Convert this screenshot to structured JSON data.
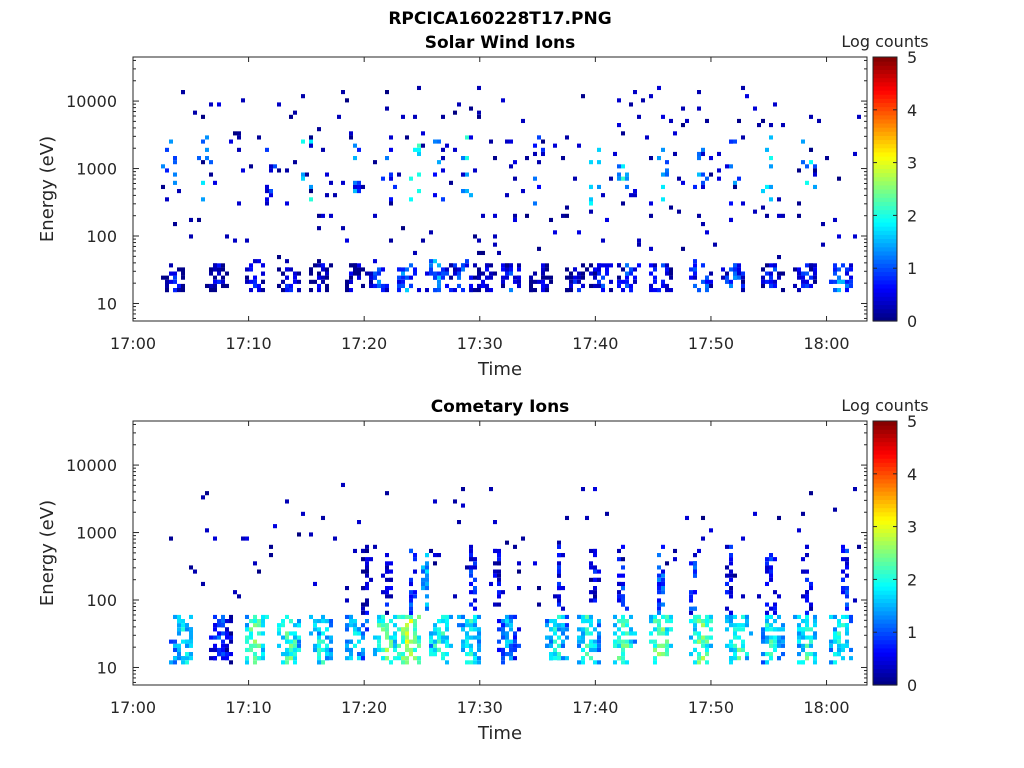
{
  "figure": {
    "title": "RPCICA160228T17.PNG"
  },
  "colormap": [
    "#00007f",
    "#0000ff",
    "#007fff",
    "#00ffff",
    "#7fff7f",
    "#ffff00",
    "#ff7f00",
    "#ff0000",
    "#7f0000"
  ],
  "chart_data": [
    {
      "type": "heatmap",
      "title": "Solar Wind Ions",
      "xlabel": "Time",
      "ylabel": "Energy (eV)",
      "x_tick_labels": [
        "17:00",
        "17:10",
        "17:20",
        "17:30",
        "17:40",
        "17:50",
        "18:00"
      ],
      "x_ticks_min": [
        0,
        10,
        20,
        30,
        40,
        50,
        60
      ],
      "xlim_min": [
        0,
        63.5
      ],
      "y_scale": "log",
      "y_tick_labels": [
        "10",
        "100",
        "1000",
        "10000"
      ],
      "y_ticks": [
        10,
        100,
        1000,
        10000
      ],
      "ylim": [
        5.5,
        45000
      ],
      "colorbar": {
        "label": "Log counts",
        "ticks": [
          "0",
          "1",
          "2",
          "3",
          "4",
          "5"
        ],
        "range": [
          0,
          5
        ]
      },
      "low_band": {
        "cluster_centers_min": [
          3.6,
          7.3,
          10.6,
          13.6,
          16.3,
          19.1,
          21.3,
          23.7,
          26.3,
          28.5,
          30.5,
          32.8,
          35.2,
          38.4,
          40.6,
          42.8,
          45.6,
          49.2,
          52.0,
          55.3,
          58.2,
          61.3
        ],
        "cluster_peaks_log": [
          1.0,
          0.9,
          1.3,
          1.1,
          0.8,
          0.9,
          1.5,
          1.7,
          1.8,
          1.6,
          1.0,
          1.3,
          1.0,
          1.1,
          1.2,
          1.4,
          1.5,
          1.7,
          1.5,
          1.2,
          1.3,
          1.8
        ],
        "energy_range_ev": [
          15,
          40
        ]
      },
      "mid_band": {
        "cluster_centers_min": [
          3.2,
          6.2,
          12.0,
          15.1,
          19.1,
          22.0,
          24.6,
          26.6,
          29.0,
          35.0,
          39.8,
          42.6,
          45.8,
          49.1,
          52.0,
          54.9,
          58.5
        ],
        "cluster_peaks_log": [
          1.8,
          2.0,
          1.4,
          2.3,
          1.7,
          1.3,
          2.6,
          1.6,
          2.2,
          1.4,
          2.1,
          2.2,
          2.1,
          1.8,
          1.7,
          2.4,
          2.1
        ],
        "energy_range_ev": [
          300,
          3000
        ]
      },
      "sparse_points": 230
    },
    {
      "type": "heatmap",
      "title": "Cometary Ions",
      "xlabel": "Time",
      "ylabel": "Energy (eV)",
      "x_tick_labels": [
        "17:00",
        "17:10",
        "17:20",
        "17:30",
        "17:40",
        "17:50",
        "18:00"
      ],
      "x_ticks_min": [
        0,
        10,
        20,
        30,
        40,
        50,
        60
      ],
      "xlim_min": [
        0,
        63.5
      ],
      "y_scale": "log",
      "y_tick_labels": [
        "10",
        "100",
        "1000",
        "10000"
      ],
      "y_ticks": [
        10,
        100,
        1000,
        10000
      ],
      "ylim": [
        5.5,
        45000
      ],
      "colorbar": {
        "label": "Log counts",
        "ticks": [
          "0",
          "1",
          "2",
          "3",
          "4",
          "5"
        ],
        "range": [
          0,
          5
        ]
      },
      "low_band": {
        "cluster_centers_min": [
          4.3,
          7.6,
          10.6,
          13.6,
          16.4,
          19.2,
          21.9,
          23.9,
          26.5,
          29.2,
          32.4,
          36.6,
          39.4,
          42.4,
          45.6,
          49.2,
          52.4,
          55.3,
          58.3,
          61.3
        ],
        "cluster_peaks_log": [
          2.3,
          1.4,
          2.8,
          2.7,
          2.4,
          2.3,
          2.9,
          3.2,
          2.6,
          2.4,
          1.9,
          2.4,
          2.5,
          2.7,
          2.9,
          2.9,
          2.6,
          2.5,
          2.6,
          2.5
        ],
        "energy_range_ev": [
          12,
          60
        ]
      },
      "mid_band": {
        "cluster_centers_min": [
          20.1,
          22.0,
          24.2,
          25.3,
          29.4,
          31.6,
          36.9,
          39.9,
          42.3,
          45.7,
          48.5,
          51.6,
          55.1,
          58.3,
          61.5
        ],
        "cluster_peaks_log": [
          0.8,
          1.0,
          1.3,
          1.9,
          1.2,
          1.0,
          1.1,
          1.0,
          1.2,
          1.5,
          1.3,
          1.1,
          1.2,
          1.1,
          1.3
        ],
        "energy_range_ev": [
          60,
          600
        ]
      },
      "sparse_points": 90
    }
  ]
}
